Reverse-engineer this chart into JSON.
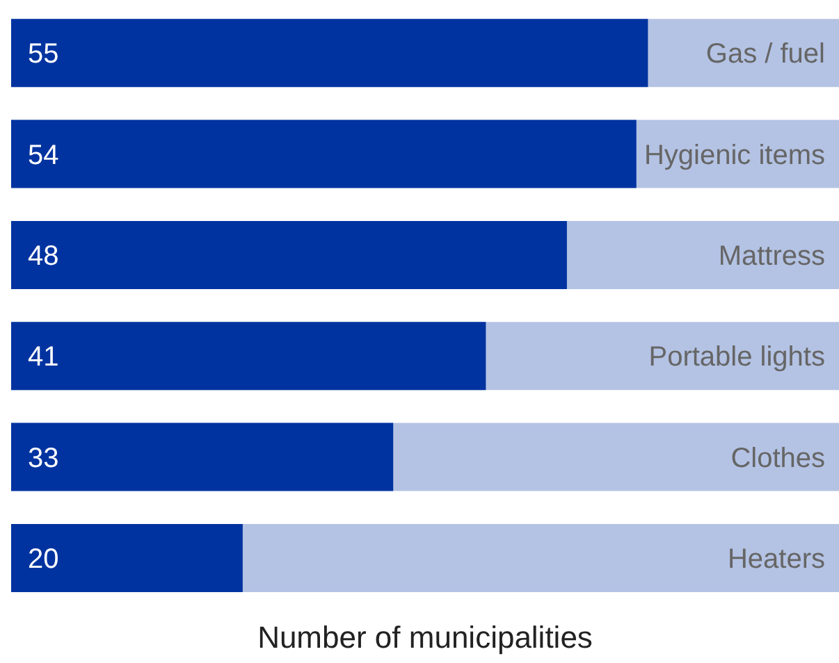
{
  "chart_data": {
    "type": "bar",
    "orientation": "horizontal",
    "xlabel": "Number of municipalities",
    "categories": [
      "Gas / fuel",
      "Hygienic items",
      "Mattress",
      "Portable lights",
      "Clothes",
      "Heaters"
    ],
    "values": [
      55,
      54,
      48,
      41,
      33,
      20
    ],
    "color": "#0033a0",
    "data_labels": true,
    "tick_labels": false,
    "grid": false,
    "legend": false
  }
}
